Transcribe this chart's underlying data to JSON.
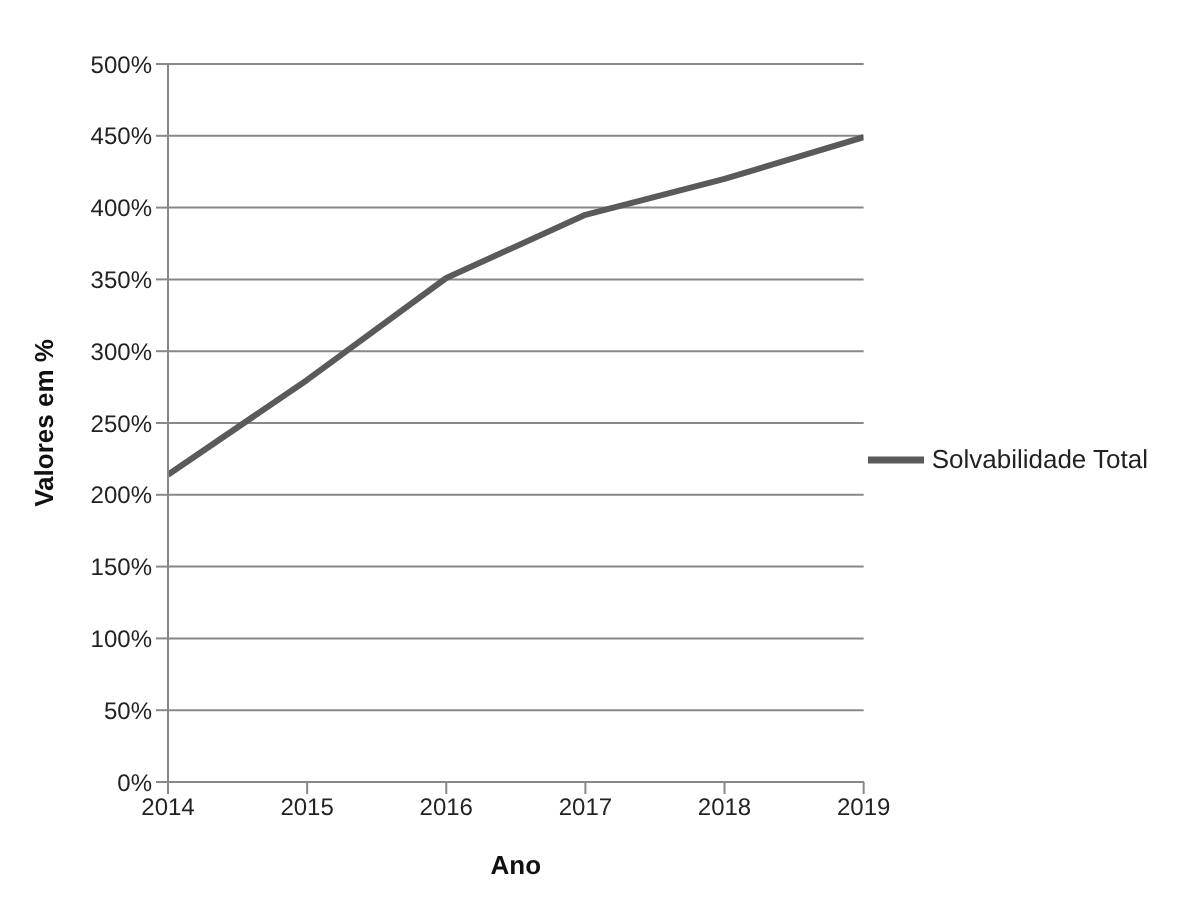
{
  "chart_data": {
    "type": "line",
    "xlabel": "Ano",
    "ylabel": "Valores em %",
    "x": [
      2014,
      2015,
      2016,
      2017,
      2018,
      2019
    ],
    "series": [
      {
        "name": "Solvabilidade Total",
        "color": "#5a5a5a",
        "values": [
          214,
          280,
          351,
          395,
          420,
          449
        ]
      }
    ],
    "xlim": [
      2014,
      2019
    ],
    "xticks": [
      2014,
      2015,
      2016,
      2017,
      2018,
      2019
    ],
    "ylim": [
      0,
      500
    ],
    "yticks": [
      {
        "value": 0,
        "label": "0%"
      },
      {
        "value": 50,
        "label": "50%"
      },
      {
        "value": 100,
        "label": "100%"
      },
      {
        "value": 150,
        "label": "150%"
      },
      {
        "value": 200,
        "label": "200%"
      },
      {
        "value": 250,
        "label": "250%"
      },
      {
        "value": 300,
        "label": "300%"
      },
      {
        "value": 350,
        "label": "350%"
      },
      {
        "value": 400,
        "label": "400%"
      },
      {
        "value": 450,
        "label": "450%"
      },
      {
        "value": 500,
        "label": "500%"
      }
    ],
    "grid": "y",
    "legend": "right",
    "marker": "none",
    "line_style": "solid"
  }
}
